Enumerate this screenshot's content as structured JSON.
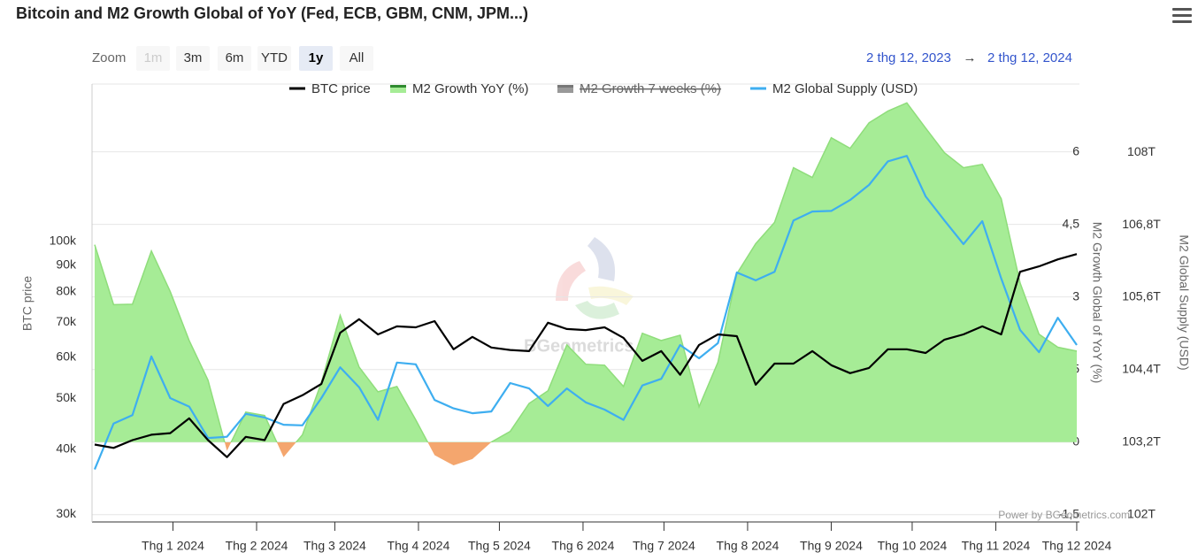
{
  "chart_data": {
    "type": "combo",
    "title": "Bitcoin and M2 Growth Global of YoY (Fed, ECB, GBM, CNM, JPM...)",
    "zoom": {
      "label": "Zoom",
      "buttons": [
        "1m",
        "3m",
        "6m",
        "YTD",
        "1y",
        "All"
      ],
      "selected": "1y",
      "disabled": [
        "1m"
      ]
    },
    "range": {
      "from": "2 thg 12, 2023",
      "arrow": "→",
      "to": "2 thg 12, 2024"
    },
    "credit": "Power by BGeometrics.com",
    "watermark": "BGeometrics",
    "y_label": "BTC price",
    "y2_label": "M2 Growth Global of YoY (%)",
    "y3_label": "M2 Global Supply (USD)",
    "xlim": [
      "2023-12-02",
      "2024-12-02"
    ],
    "xticks": [
      {
        "value": "2024-01-01",
        "label": "Thg 1 2024"
      },
      {
        "value": "2024-02-01",
        "label": "Thg 2 2024"
      },
      {
        "value": "2024-03-01",
        "label": "Thg 3 2024"
      },
      {
        "value": "2024-04-01",
        "label": "Thg 4 2024"
      },
      {
        "value": "2024-05-01",
        "label": "Thg 5 2024"
      },
      {
        "value": "2024-06-01",
        "label": "Thg 6 2024"
      },
      {
        "value": "2024-07-01",
        "label": "Thg 7 2024"
      },
      {
        "value": "2024-08-01",
        "label": "Thg 8 2024"
      },
      {
        "value": "2024-09-01",
        "label": "Thg 9 2024"
      },
      {
        "value": "2024-10-01",
        "label": "Thg 10 2024"
      },
      {
        "value": "2024-11-01",
        "label": "Thg 11 2024"
      },
      {
        "value": "2024-12-01",
        "label": "Thg 12 2024"
      }
    ],
    "ylim": [
      29000,
      200000
    ],
    "log_scale": true,
    "yticks": [
      {
        "value": 30000,
        "label": "30k"
      },
      {
        "value": 40000,
        "label": "40k"
      },
      {
        "value": 50000,
        "label": "50k"
      },
      {
        "value": 60000,
        "label": "60k"
      },
      {
        "value": 70000,
        "label": "70k"
      },
      {
        "value": 80000,
        "label": "80k"
      },
      {
        "value": 90000,
        "label": "90k"
      },
      {
        "value": 100000,
        "label": "100k"
      }
    ],
    "y2lim": [
      -1.65,
      7.4
    ],
    "y2ticks": [
      {
        "value": -1.5,
        "label": "-1,5"
      },
      0,
      {
        "value": 1.5,
        "label": "1,5"
      },
      3,
      {
        "value": 4.5,
        "label": "4,5"
      },
      6
    ],
    "y3lim": [
      101.88,
      109.13
    ],
    "y3ticks": [
      {
        "value": 102,
        "label": "102T"
      },
      {
        "value": 103.2,
        "label": "103,2T"
      },
      {
        "value": 104.4,
        "label": "104,4T"
      },
      {
        "value": 105.6,
        "label": "105,6T"
      },
      {
        "value": 106.8,
        "label": "106,8T"
      },
      {
        "value": 108,
        "label": "108T"
      }
    ],
    "grid": true,
    "x": [
      "2023-12-03",
      "2023-12-10",
      "2023-12-17",
      "2023-12-24",
      "2023-12-31",
      "2024-01-07",
      "2024-01-14",
      "2024-01-21",
      "2024-01-28",
      "2024-02-04",
      "2024-02-11",
      "2024-02-18",
      "2024-02-25",
      "2024-03-03",
      "2024-03-10",
      "2024-03-17",
      "2024-03-24",
      "2024-03-31",
      "2024-04-07",
      "2024-04-14",
      "2024-04-21",
      "2024-04-28",
      "2024-05-05",
      "2024-05-12",
      "2024-05-19",
      "2024-05-26",
      "2024-06-02",
      "2024-06-09",
      "2024-06-16",
      "2024-06-23",
      "2024-06-30",
      "2024-07-07",
      "2024-07-14",
      "2024-07-21",
      "2024-07-28",
      "2024-08-04",
      "2024-08-11",
      "2024-08-18",
      "2024-08-25",
      "2024-09-01",
      "2024-09-08",
      "2024-09-15",
      "2024-09-22",
      "2024-09-29",
      "2024-10-06",
      "2024-10-13",
      "2024-10-20",
      "2024-10-27",
      "2024-11-03",
      "2024-11-10",
      "2024-11-17",
      "2024-11-24",
      "2024-12-01"
    ],
    "series": [
      {
        "name": "M2 Growth YoY (%)",
        "type": "area",
        "axis": "y2",
        "color": "#a6ec96",
        "negative_color": "#f4a66e",
        "values": [
          4.08,
          2.84,
          2.85,
          3.95,
          3.11,
          2.1,
          1.28,
          -0.18,
          0.62,
          0.55,
          -0.31,
          0.15,
          1.23,
          2.62,
          1.55,
          1.04,
          1.15,
          0.46,
          -0.27,
          -0.48,
          -0.35,
          0,
          0.22,
          0.8,
          1.06,
          2.01,
          1.61,
          1.59,
          1.15,
          2.25,
          2.1,
          2.21,
          0.73,
          1.65,
          3.48,
          4.1,
          4.54,
          5.67,
          5.47,
          6.29,
          6.07,
          6.6,
          6.84,
          7.01,
          6.49,
          5.98,
          5.67,
          5.74,
          5.03,
          3.29,
          2.23,
          1.96,
          1.88
        ]
      },
      {
        "name": "M2 Growth 7 weeks (%)",
        "type": "area",
        "axis": "y2",
        "color": "#777777",
        "visible": false
      },
      {
        "name": "M2 Global Supply (USD)",
        "type": "line",
        "axis": "y3",
        "color": "#3eaef0",
        "values": [
          102.75,
          103.51,
          103.65,
          104.62,
          103.93,
          103.79,
          103.27,
          103.29,
          103.67,
          103.61,
          103.49,
          103.48,
          103.93,
          104.44,
          104.11,
          103.57,
          104.52,
          104.49,
          103.9,
          103.76,
          103.68,
          103.71,
          104.18,
          104.09,
          103.8,
          104.09,
          103.86,
          103.74,
          103.57,
          104.14,
          104.25,
          104.81,
          104.59,
          104.84,
          106.01,
          105.88,
          106.02,
          106.87,
          107.02,
          107.03,
          107.21,
          107.46,
          107.85,
          107.94,
          107.27,
          106.87,
          106.48,
          106.86,
          105.91,
          105.06,
          104.69,
          105.26,
          104.81
        ]
      },
      {
        "name": "BTC price",
        "type": "line",
        "axis": "y",
        "color": "#000000",
        "values": [
          40800,
          40200,
          41600,
          42600,
          42900,
          45800,
          41600,
          38600,
          42200,
          41600,
          48800,
          50700,
          53300,
          66800,
          70900,
          66300,
          68700,
          68400,
          70300,
          62100,
          65600,
          62600,
          61900,
          61600,
          69800,
          67900,
          67600,
          68400,
          65300,
          59000,
          61600,
          55500,
          63300,
          66300,
          65800,
          53100,
          58300,
          58300,
          61600,
          57900,
          55900,
          57200,
          62100,
          62100,
          61100,
          64800,
          66300,
          68700,
          66300,
          87400,
          89500,
          92300,
          94500
        ]
      }
    ],
    "legend_order": [
      3,
      0,
      1,
      2
    ]
  }
}
